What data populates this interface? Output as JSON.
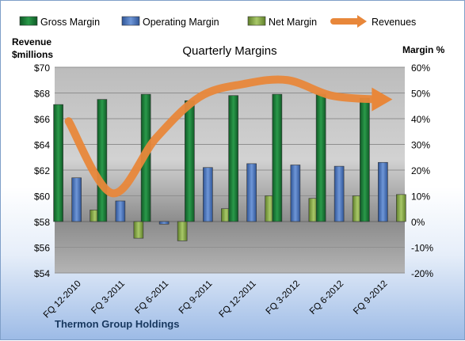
{
  "chart_data": {
    "type": "bar",
    "title": "Quarterly Margins",
    "categories": [
      "FQ 12-2010",
      "FQ 3-2011",
      "FQ 6-2011",
      "FQ 9-2011",
      "FQ 12-2011",
      "FQ 3-2012",
      "FQ 6-2012",
      "FQ 9-2012"
    ],
    "series": [
      {
        "name": "Gross Margin",
        "axis": "right",
        "color": "#1e7b3a",
        "values": [
          45.5,
          47.5,
          49.5,
          47,
          49,
          49.5,
          49.5,
          48
        ]
      },
      {
        "name": "Operating Margin",
        "axis": "right",
        "color": "#4f76b8",
        "values": [
          17,
          8,
          -1,
          21,
          22.5,
          22,
          21.5,
          23
        ]
      },
      {
        "name": "Net Margin",
        "axis": "right",
        "color": "#8aac4a",
        "values": [
          4.5,
          -6.5,
          -7.5,
          5,
          10,
          9,
          10,
          10.5
        ]
      },
      {
        "name": "Revenues",
        "axis": "left",
        "type": "line",
        "color": "#e8873a",
        "values": [
          65.8,
          60.2,
          64.5,
          67.7,
          68.7,
          69.0,
          67.8,
          67.5
        ]
      }
    ],
    "y_left": {
      "label": "Revenue $millions",
      "ylim": [
        54,
        70
      ],
      "ticks": [
        "$54",
        "$56",
        "$58",
        "$60",
        "$62",
        "$64",
        "$66",
        "$68",
        "$70"
      ]
    },
    "y_right": {
      "label": "Margin %",
      "ylim": [
        -20,
        60
      ],
      "ticks": [
        "-20%",
        "-10%",
        "0%",
        "10%",
        "20%",
        "30%",
        "40%",
        "50%",
        "60%"
      ]
    },
    "legend_position": "top",
    "grid": true
  },
  "labels": {
    "y_left_line1": "Revenue",
    "y_left_line2": "$millions",
    "y_right": "Margin %",
    "brand": "Thermon Group Holdings"
  }
}
